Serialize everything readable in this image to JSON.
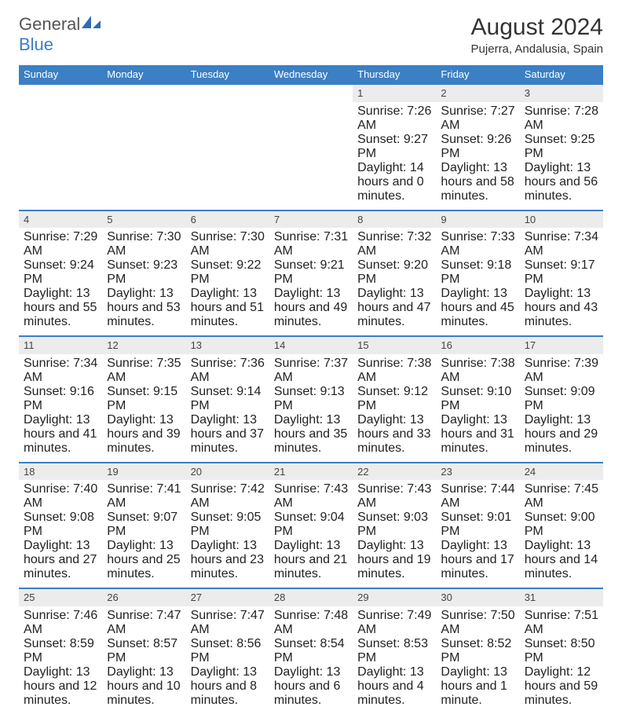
{
  "logo": {
    "text_gray": "General",
    "text_blue": "Blue"
  },
  "title": "August 2024",
  "location": "Pujerra, Andalusia, Spain",
  "colors": {
    "header_bg": "#3b7fc4",
    "header_text": "#ffffff",
    "daynum_bg": "#ececec",
    "border": "#3b7fc4",
    "body_text": "#222222"
  },
  "day_headers": [
    "Sunday",
    "Monday",
    "Tuesday",
    "Wednesday",
    "Thursday",
    "Friday",
    "Saturday"
  ],
  "weeks": [
    [
      null,
      null,
      null,
      null,
      {
        "num": "1",
        "sunrise": "7:26 AM",
        "sunset": "9:27 PM",
        "daylight": "14 hours and 0 minutes."
      },
      {
        "num": "2",
        "sunrise": "7:27 AM",
        "sunset": "9:26 PM",
        "daylight": "13 hours and 58 minutes."
      },
      {
        "num": "3",
        "sunrise": "7:28 AM",
        "sunset": "9:25 PM",
        "daylight": "13 hours and 56 minutes."
      }
    ],
    [
      {
        "num": "4",
        "sunrise": "7:29 AM",
        "sunset": "9:24 PM",
        "daylight": "13 hours and 55 minutes."
      },
      {
        "num": "5",
        "sunrise": "7:30 AM",
        "sunset": "9:23 PM",
        "daylight": "13 hours and 53 minutes."
      },
      {
        "num": "6",
        "sunrise": "7:30 AM",
        "sunset": "9:22 PM",
        "daylight": "13 hours and 51 minutes."
      },
      {
        "num": "7",
        "sunrise": "7:31 AM",
        "sunset": "9:21 PM",
        "daylight": "13 hours and 49 minutes."
      },
      {
        "num": "8",
        "sunrise": "7:32 AM",
        "sunset": "9:20 PM",
        "daylight": "13 hours and 47 minutes."
      },
      {
        "num": "9",
        "sunrise": "7:33 AM",
        "sunset": "9:18 PM",
        "daylight": "13 hours and 45 minutes."
      },
      {
        "num": "10",
        "sunrise": "7:34 AM",
        "sunset": "9:17 PM",
        "daylight": "13 hours and 43 minutes."
      }
    ],
    [
      {
        "num": "11",
        "sunrise": "7:34 AM",
        "sunset": "9:16 PM",
        "daylight": "13 hours and 41 minutes."
      },
      {
        "num": "12",
        "sunrise": "7:35 AM",
        "sunset": "9:15 PM",
        "daylight": "13 hours and 39 minutes."
      },
      {
        "num": "13",
        "sunrise": "7:36 AM",
        "sunset": "9:14 PM",
        "daylight": "13 hours and 37 minutes."
      },
      {
        "num": "14",
        "sunrise": "7:37 AM",
        "sunset": "9:13 PM",
        "daylight": "13 hours and 35 minutes."
      },
      {
        "num": "15",
        "sunrise": "7:38 AM",
        "sunset": "9:12 PM",
        "daylight": "13 hours and 33 minutes."
      },
      {
        "num": "16",
        "sunrise": "7:38 AM",
        "sunset": "9:10 PM",
        "daylight": "13 hours and 31 minutes."
      },
      {
        "num": "17",
        "sunrise": "7:39 AM",
        "sunset": "9:09 PM",
        "daylight": "13 hours and 29 minutes."
      }
    ],
    [
      {
        "num": "18",
        "sunrise": "7:40 AM",
        "sunset": "9:08 PM",
        "daylight": "13 hours and 27 minutes."
      },
      {
        "num": "19",
        "sunrise": "7:41 AM",
        "sunset": "9:07 PM",
        "daylight": "13 hours and 25 minutes."
      },
      {
        "num": "20",
        "sunrise": "7:42 AM",
        "sunset": "9:05 PM",
        "daylight": "13 hours and 23 minutes."
      },
      {
        "num": "21",
        "sunrise": "7:43 AM",
        "sunset": "9:04 PM",
        "daylight": "13 hours and 21 minutes."
      },
      {
        "num": "22",
        "sunrise": "7:43 AM",
        "sunset": "9:03 PM",
        "daylight": "13 hours and 19 minutes."
      },
      {
        "num": "23",
        "sunrise": "7:44 AM",
        "sunset": "9:01 PM",
        "daylight": "13 hours and 17 minutes."
      },
      {
        "num": "24",
        "sunrise": "7:45 AM",
        "sunset": "9:00 PM",
        "daylight": "13 hours and 14 minutes."
      }
    ],
    [
      {
        "num": "25",
        "sunrise": "7:46 AM",
        "sunset": "8:59 PM",
        "daylight": "13 hours and 12 minutes."
      },
      {
        "num": "26",
        "sunrise": "7:47 AM",
        "sunset": "8:57 PM",
        "daylight": "13 hours and 10 minutes."
      },
      {
        "num": "27",
        "sunrise": "7:47 AM",
        "sunset": "8:56 PM",
        "daylight": "13 hours and 8 minutes."
      },
      {
        "num": "28",
        "sunrise": "7:48 AM",
        "sunset": "8:54 PM",
        "daylight": "13 hours and 6 minutes."
      },
      {
        "num": "29",
        "sunrise": "7:49 AM",
        "sunset": "8:53 PM",
        "daylight": "13 hours and 4 minutes."
      },
      {
        "num": "30",
        "sunrise": "7:50 AM",
        "sunset": "8:52 PM",
        "daylight": "13 hours and 1 minute."
      },
      {
        "num": "31",
        "sunrise": "7:51 AM",
        "sunset": "8:50 PM",
        "daylight": "12 hours and 59 minutes."
      }
    ]
  ],
  "labels": {
    "sunrise": "Sunrise:",
    "sunset": "Sunset:",
    "daylight": "Daylight:"
  }
}
